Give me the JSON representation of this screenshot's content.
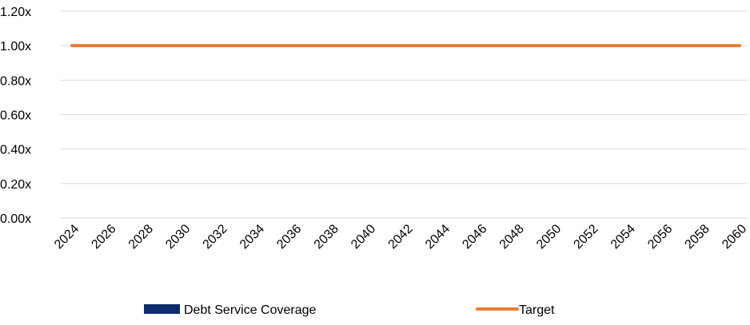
{
  "chart_data": {
    "type": "line",
    "title": "",
    "xlabel": "",
    "ylabel": "",
    "x_tick_labels": [
      "2024",
      "2026",
      "2028",
      "2030",
      "2032",
      "2034",
      "2036",
      "2038",
      "2040",
      "2042",
      "2044",
      "2046",
      "2048",
      "2050",
      "2052",
      "2054",
      "2056",
      "2058",
      "2060"
    ],
    "x_range": [
      2024,
      2060
    ],
    "y_tick_values": [
      0,
      0.2,
      0.4,
      0.6,
      0.8,
      1.0,
      1.2
    ],
    "y_tick_labels": [
      "0.00x",
      "0.20x",
      "0.40x",
      "0.60x",
      "0.80x",
      "1.00x",
      "1.20x"
    ],
    "ylim": [
      0,
      1.2
    ],
    "grid": "horizontal",
    "legend_position": "bottom",
    "series": [
      {
        "name": "Debt Service Coverage",
        "type": "bar",
        "color": "#0d2a6b",
        "x": [],
        "values": []
      },
      {
        "name": "Target",
        "type": "line",
        "color": "#ed7d31",
        "x": [
          2024,
          2060
        ],
        "values": [
          1.0,
          1.0
        ]
      }
    ]
  }
}
